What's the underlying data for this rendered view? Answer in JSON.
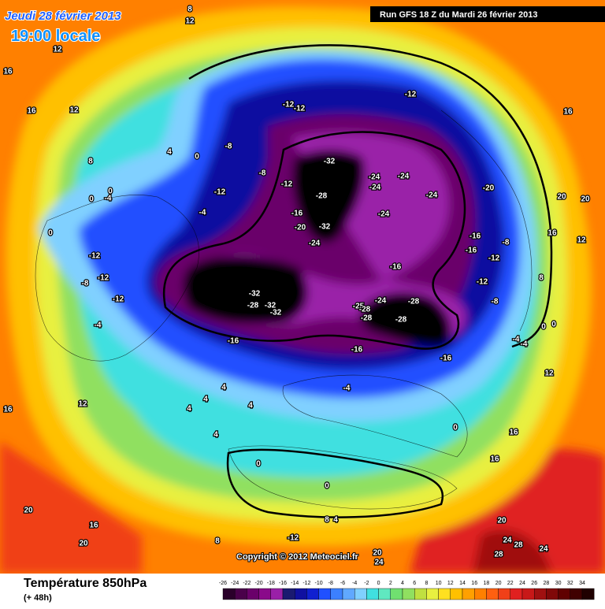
{
  "header": {
    "date": "Jeudi 28 février 2013",
    "time": "19:00 locale",
    "run": "Run GFS 18 Z du Mardi 26 février 2013"
  },
  "copyright": "Copyright © 2012 Meteociel.fr",
  "footer": {
    "title": "Température 850hPa",
    "lead": "(+ 48h)"
  },
  "colorbar": {
    "ticks": [
      -26,
      -24,
      -22,
      -20,
      -18,
      -16,
      -14,
      -12,
      -10,
      -8,
      -6,
      -4,
      -2,
      0,
      2,
      4,
      6,
      8,
      10,
      12,
      14,
      16,
      18,
      20,
      22,
      24,
      26,
      28,
      30,
      32,
      34
    ],
    "colors": [
      "#2a002a",
      "#4a004a",
      "#6a006a",
      "#8a0a8a",
      "#9a20a8",
      "#1a1a70",
      "#1010a0",
      "#1020d0",
      "#2050ff",
      "#3c80ff",
      "#60a8ff",
      "#80d0ff",
      "#40e0e0",
      "#60e8c0",
      "#70e070",
      "#90e060",
      "#c0e040",
      "#e8f040",
      "#ffe020",
      "#ffc000",
      "#ffa000",
      "#ff8000",
      "#ff6010",
      "#f04018",
      "#e02020",
      "#c81818",
      "#a01010",
      "#800808",
      "#600000",
      "#400000",
      "#200000"
    ]
  },
  "map": {
    "labels": [
      -32,
      -24,
      -24,
      -24,
      -24,
      -28,
      -24,
      -16,
      -20,
      -32,
      -24,
      -12,
      -12,
      -12,
      -8,
      -8,
      -12,
      -12,
      -4,
      -12,
      -12,
      -12,
      -8,
      -4,
      -16,
      -32,
      -28,
      -32,
      -32,
      -28,
      -24,
      -25,
      -28,
      -28,
      -28,
      -16,
      -16,
      -16,
      -16,
      -16,
      -12,
      -8,
      -12,
      -20,
      -8,
      -4,
      4,
      4,
      4,
      4,
      4,
      0,
      0,
      0,
      4,
      8,
      12,
      16,
      12,
      16,
      12,
      16,
      20,
      20,
      16,
      20,
      20,
      16,
      16,
      12,
      24,
      28,
      24,
      28,
      20,
      16,
      16,
      12,
      8,
      0,
      0,
      -4,
      -4,
      20,
      24,
      -12,
      8,
      12,
      8,
      4,
      8,
      0,
      0,
      0,
      -4,
      0
    ]
  }
}
